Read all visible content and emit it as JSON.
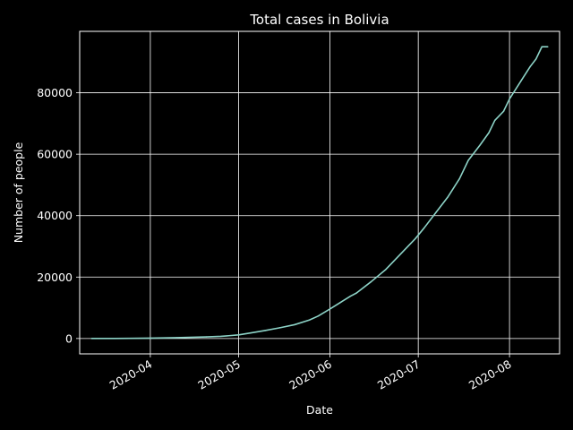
{
  "chart_data": {
    "type": "line",
    "title": "Total cases in Bolivia",
    "xlabel": "Date",
    "ylabel": "Number of people",
    "x_axis_type": "date",
    "xlim": [
      "2020-03-08",
      "2020-08-18"
    ],
    "ylim": [
      -5000,
      100000
    ],
    "grid": true,
    "x_ticks": [
      {
        "date": "2020-04-01",
        "label": "2020-04"
      },
      {
        "date": "2020-05-01",
        "label": "2020-05"
      },
      {
        "date": "2020-06-01",
        "label": "2020-06"
      },
      {
        "date": "2020-07-01",
        "label": "2020-07"
      },
      {
        "date": "2020-08-01",
        "label": "2020-08"
      }
    ],
    "y_ticks": [
      0,
      20000,
      40000,
      60000,
      80000
    ],
    "series": [
      {
        "color": "#8dd3c7",
        "points": [
          [
            "2020-03-12",
            0
          ],
          [
            "2020-03-15",
            10
          ],
          [
            "2020-03-20",
            20
          ],
          [
            "2020-03-25",
            40
          ],
          [
            "2020-04-01",
            110
          ],
          [
            "2020-04-10",
            260
          ],
          [
            "2020-04-20",
            520
          ],
          [
            "2020-04-25",
            700
          ],
          [
            "2020-05-01",
            1170
          ],
          [
            "2020-05-05",
            1800
          ],
          [
            "2020-05-10",
            2600
          ],
          [
            "2020-05-15",
            3500
          ],
          [
            "2020-05-20",
            4500
          ],
          [
            "2020-05-25",
            6000
          ],
          [
            "2020-05-28",
            7300
          ],
          [
            "2020-06-01",
            9600
          ],
          [
            "2020-06-05",
            12000
          ],
          [
            "2020-06-08",
            13800
          ],
          [
            "2020-06-10",
            14800
          ],
          [
            "2020-06-15",
            18500
          ],
          [
            "2020-06-20",
            22500
          ],
          [
            "2020-06-25",
            27500
          ],
          [
            "2020-06-30",
            32500
          ],
          [
            "2020-07-03",
            36000
          ],
          [
            "2020-07-07",
            41000
          ],
          [
            "2020-07-11",
            46000
          ],
          [
            "2020-07-15",
            52000
          ],
          [
            "2020-07-18",
            58000
          ],
          [
            "2020-07-22",
            63000
          ],
          [
            "2020-07-25",
            67000
          ],
          [
            "2020-07-27",
            71000
          ],
          [
            "2020-07-30",
            74000
          ],
          [
            "2020-08-01",
            78000
          ],
          [
            "2020-08-05",
            84000
          ],
          [
            "2020-08-08",
            88500
          ],
          [
            "2020-08-10",
            91000
          ],
          [
            "2020-08-12",
            95000
          ],
          [
            "2020-08-14",
            95000
          ]
        ]
      }
    ]
  }
}
